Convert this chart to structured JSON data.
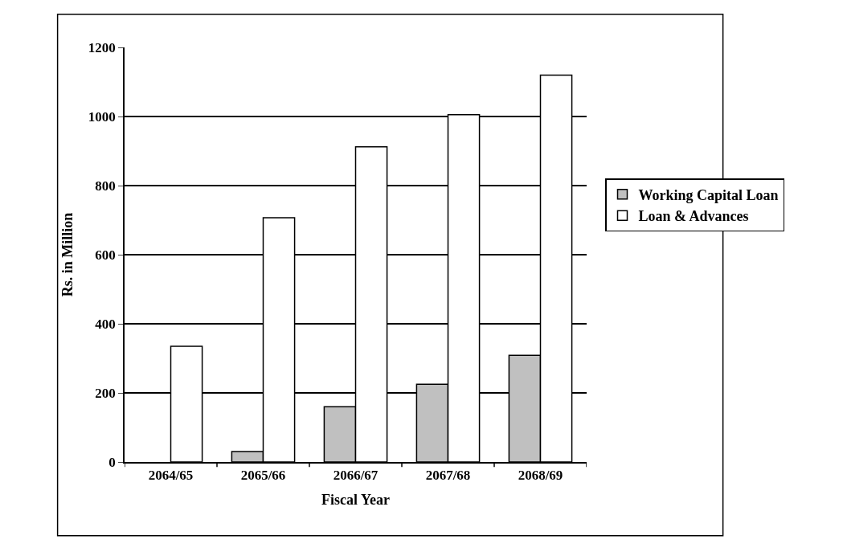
{
  "chart_data": {
    "type": "bar",
    "xlabel": "Fiscal Year",
    "ylabel": "Rs. in Million",
    "categories": [
      "2064/65",
      "2065/66",
      "2066/67",
      "2067/68",
      "2068/69"
    ],
    "series": [
      {
        "name": "Working Capital Loan",
        "color": "#c0c0c0",
        "values": [
          null,
          30,
          160,
          225,
          309
        ]
      },
      {
        "name": "Loan & Advances",
        "color": "#ffffff",
        "values": [
          335,
          707,
          912,
          1005,
          1120
        ]
      }
    ],
    "ylim": [
      0,
      1200
    ],
    "yticks": [
      0,
      200,
      400,
      600,
      800,
      1000,
      1200
    ],
    "grid": "y",
    "legend": "right"
  }
}
